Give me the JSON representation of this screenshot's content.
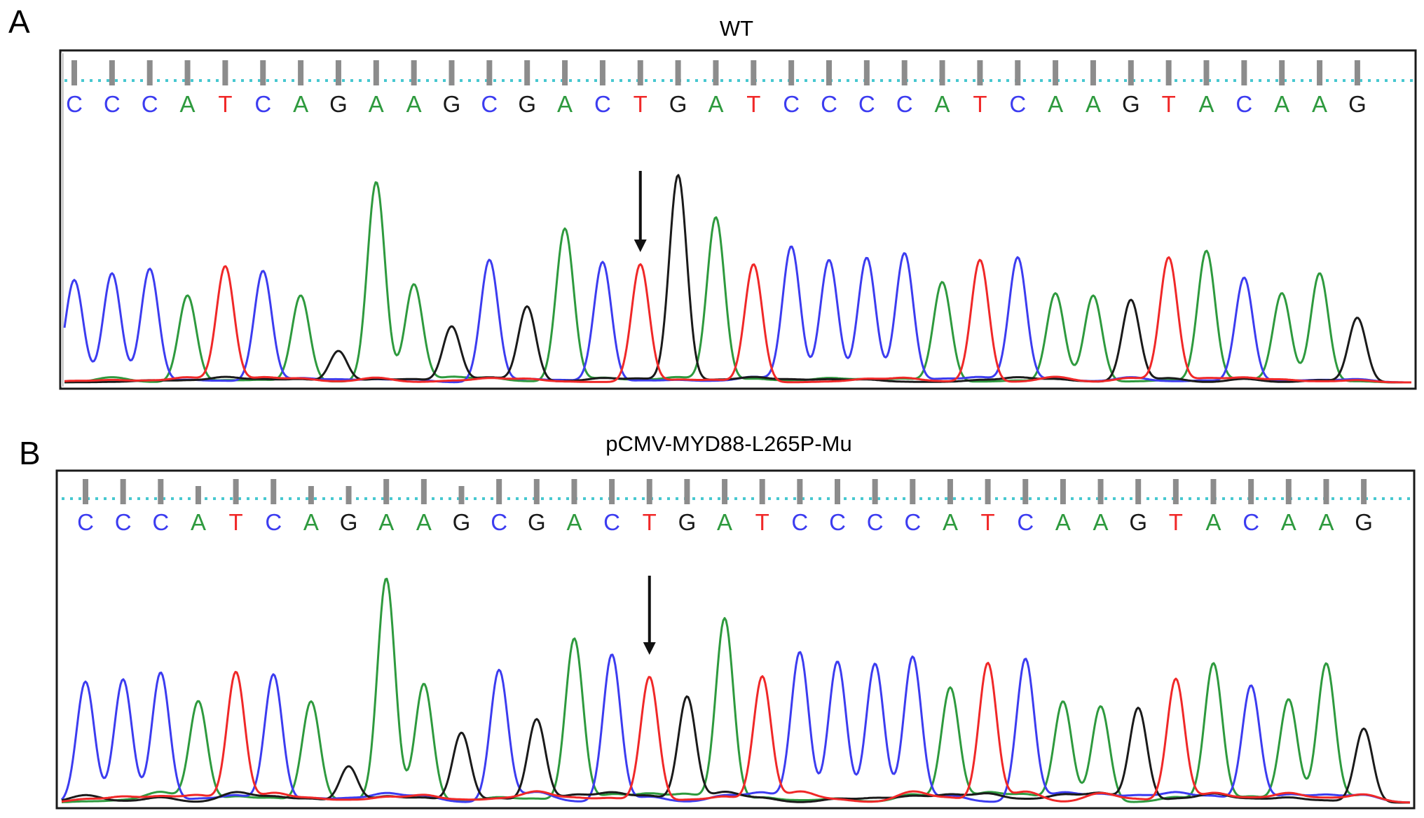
{
  "colors": {
    "A": "#2e9a3e",
    "C": "#3c3cf0",
    "G": "#1a1a1a",
    "T": "#f02828",
    "guide": "#47c8d0"
  },
  "panels": [
    {
      "letter": "A",
      "title": "WT",
      "sequence": [
        "C",
        "C",
        "C",
        "A",
        "T",
        "C",
        "A",
        "G",
        "A",
        "A",
        "G",
        "C",
        "G",
        "A",
        "C",
        "T",
        "G",
        "A",
        "T",
        "C",
        "C",
        "C",
        "C",
        "A",
        "T",
        "C",
        "A",
        "A",
        "G",
        "T",
        "A",
        "C",
        "A",
        "A",
        "G"
      ],
      "peak_heights": [
        0.46,
        0.49,
        0.51,
        0.39,
        0.52,
        0.5,
        0.39,
        0.14,
        0.9,
        0.44,
        0.25,
        0.55,
        0.34,
        0.69,
        0.54,
        0.53,
        0.93,
        0.74,
        0.53,
        0.61,
        0.55,
        0.56,
        0.58,
        0.45,
        0.55,
        0.56,
        0.4,
        0.39,
        0.37,
        0.56,
        0.59,
        0.47,
        0.4,
        0.49,
        0.29
      ],
      "arrow_index": 15
    },
    {
      "letter": "B",
      "title": "pCMV-MYD88-L265P-Mu",
      "sequence": [
        "C",
        "C",
        "C",
        "A",
        "T",
        "C",
        "A",
        "G",
        "A",
        "A",
        "G",
        "C",
        "G",
        "A",
        "C",
        "T",
        "G",
        "A",
        "T",
        "C",
        "C",
        "C",
        "C",
        "A",
        "T",
        "C",
        "A",
        "A",
        "G",
        "T",
        "A",
        "C",
        "A",
        "A",
        "G"
      ],
      "peak_heights": [
        0.54,
        0.55,
        0.58,
        0.45,
        0.58,
        0.57,
        0.45,
        0.16,
        1.0,
        0.53,
        0.31,
        0.59,
        0.37,
        0.73,
        0.66,
        0.56,
        0.47,
        0.82,
        0.56,
        0.67,
        0.63,
        0.62,
        0.65,
        0.51,
        0.62,
        0.64,
        0.45,
        0.43,
        0.42,
        0.55,
        0.62,
        0.52,
        0.46,
        0.62,
        0.33
      ],
      "arrow_index": 15
    }
  ],
  "chart_data": [
    {
      "type": "line",
      "title": "WT",
      "categories": [
        "C",
        "C",
        "C",
        "A",
        "T",
        "C",
        "A",
        "G",
        "A",
        "A",
        "G",
        "C",
        "G",
        "A",
        "C",
        "T",
        "G",
        "A",
        "T",
        "C",
        "C",
        "C",
        "C",
        "A",
        "T",
        "C",
        "A",
        "A",
        "G",
        "T",
        "A",
        "C",
        "A",
        "A",
        "G"
      ],
      "series": [
        {
          "values": [
            0.46,
            0.49,
            0.51,
            0.39,
            0.52,
            0.5,
            0.39,
            0.14,
            0.9,
            0.44,
            0.25,
            0.55,
            0.34,
            0.69,
            0.54,
            0.53,
            0.93,
            0.74,
            0.53,
            0.61,
            0.55,
            0.56,
            0.58,
            0.45,
            0.55,
            0.56,
            0.4,
            0.39,
            0.37,
            0.56,
            0.59,
            0.47,
            0.4,
            0.49,
            0.29
          ]
        }
      ]
    },
    {
      "type": "line",
      "title": "pCMV-MYD88-L265P-Mu",
      "categories": [
        "C",
        "C",
        "C",
        "A",
        "T",
        "C",
        "A",
        "G",
        "A",
        "A",
        "G",
        "C",
        "G",
        "A",
        "C",
        "T",
        "G",
        "A",
        "T",
        "C",
        "C",
        "C",
        "C",
        "A",
        "T",
        "C",
        "A",
        "A",
        "G",
        "T",
        "A",
        "C",
        "A",
        "A",
        "G"
      ],
      "series": [
        {
          "values": [
            0.54,
            0.55,
            0.58,
            0.45,
            0.58,
            0.57,
            0.45,
            0.16,
            1.0,
            0.53,
            0.31,
            0.59,
            0.37,
            0.73,
            0.66,
            0.56,
            0.47,
            0.82,
            0.56,
            0.67,
            0.63,
            0.62,
            0.65,
            0.51,
            0.62,
            0.64,
            0.45,
            0.43,
            0.42,
            0.55,
            0.62,
            0.52,
            0.46,
            0.62,
            0.33
          ]
        }
      ]
    }
  ]
}
